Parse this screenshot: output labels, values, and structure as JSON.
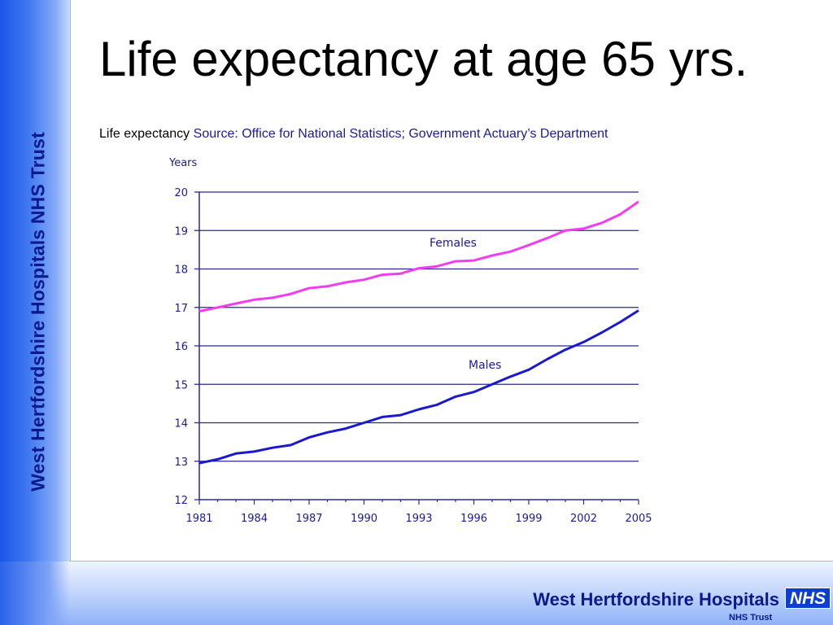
{
  "slide": {
    "title": "Life expectancy at age 65 yrs.",
    "subtitle_prefix": "Life expectancy",
    "subtitle_source": "Source: Office for National Statistics; Government Actuary’s Department",
    "side_org_name": "West Hertfordshire Hospitals NHS Trust",
    "footer_org_name": "West Hertfordshire Hospitals",
    "nhs_logo_text": "NHS",
    "nhs_trust_text": "NHS Trust"
  },
  "colors": {
    "side_text": "#0a1a8c",
    "axis_text": "#1a1a9c",
    "grid": "#2a2a90",
    "females": "#f23cf0",
    "males": "#1a1acc"
  },
  "chart_data": {
    "type": "line",
    "title": "",
    "xlabel": "",
    "ylabel": "Years",
    "ylim": [
      12,
      20
    ],
    "xlim": [
      1981,
      2005
    ],
    "yticks": [
      12,
      13,
      14,
      15,
      16,
      17,
      18,
      19,
      20
    ],
    "xticks": [
      1981,
      1984,
      1987,
      1990,
      1993,
      1996,
      1999,
      2002,
      2005
    ],
    "grid": true,
    "legend": "inline labels",
    "x": [
      1981,
      1982,
      1983,
      1984,
      1985,
      1986,
      1987,
      1988,
      1989,
      1990,
      1991,
      1992,
      1993,
      1994,
      1995,
      1996,
      1997,
      1998,
      1999,
      2000,
      2001,
      2002,
      2003,
      2004,
      2005
    ],
    "series": [
      {
        "name": "Females",
        "color": "#f23cf0",
        "values": [
          16.9,
          17.0,
          17.1,
          17.2,
          17.25,
          17.35,
          17.5,
          17.55,
          17.65,
          17.72,
          17.85,
          17.88,
          18.02,
          18.07,
          18.2,
          18.22,
          18.35,
          18.45,
          18.62,
          18.8,
          19.0,
          19.05,
          19.2,
          19.42,
          19.75
        ]
      },
      {
        "name": "Males",
        "color": "#1a1acc",
        "values": [
          12.95,
          13.05,
          13.2,
          13.25,
          13.35,
          13.42,
          13.62,
          13.75,
          13.85,
          14.0,
          14.15,
          14.2,
          14.35,
          14.47,
          14.68,
          14.8,
          15.0,
          15.2,
          15.38,
          15.65,
          15.9,
          16.1,
          16.35,
          16.62,
          16.92
        ]
      }
    ]
  }
}
